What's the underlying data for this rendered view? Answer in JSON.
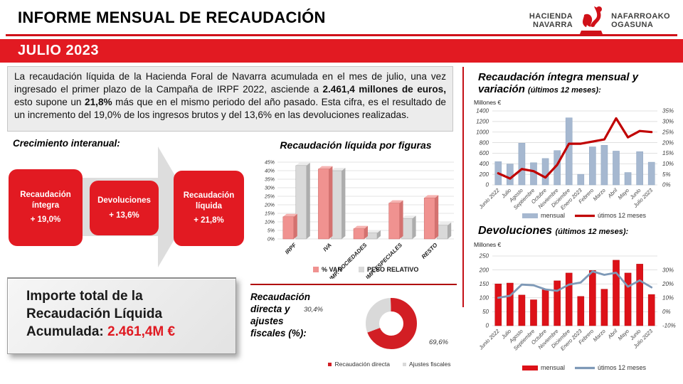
{
  "header": {
    "title": "INFORME MENSUAL DE RECAUDACIÓN",
    "banner": "JULIO 2023",
    "logo": {
      "left_line1": "HACIENDA",
      "left_line2": "NAVARRA",
      "right_line1": "NAFARROAKO",
      "right_line2": "OGASUNA"
    }
  },
  "colors": {
    "accent_red": "#E21A22",
    "rule_red": "#C41017",
    "chart_line_red": "#C00000",
    "devol_bar_red": "#DD1118",
    "salmon": "#F09290",
    "light_gray": "#D9D9D9",
    "bar_blue": "#A6B8D0",
    "line_blue": "#7E99B7"
  },
  "intro": {
    "segments": [
      {
        "bold": false,
        "text": "La recaudación líquida de la Hacienda Foral de Navarra acumulada en el mes de julio, una vez ingresado el primer plazo de la Campaña de IRPF 2022, asciende a "
      },
      {
        "bold": true,
        "text": "2.461,4 millones de euros,"
      },
      {
        "bold": false,
        "text": " esto supone un "
      },
      {
        "bold": true,
        "text": "21,8%"
      },
      {
        "bold": false,
        "text": " más que en el mismo periodo del año pasado. Esta cifra, es el resultado de un incremento del 19,0% de los ingresos brutos y del 13,6% en las devoluciones  realizadas."
      }
    ]
  },
  "growth": {
    "title": "Crecimiento interanual:",
    "boxes": [
      {
        "label": "Recaudación íntegra",
        "value": "+ 19,0%"
      },
      {
        "label": "Devoluciones",
        "value": "+ 13,6%"
      },
      {
        "label": "Recaudación líquida",
        "value": "+ 21,8%"
      }
    ]
  },
  "total_box": {
    "line1": "Importe total de la",
    "line2": "Recaudación Líquida",
    "line3_prefix": "Acumulada: ",
    "line3_value": "2.461,4M €"
  },
  "chart_data": [
    {
      "id": "figuras",
      "type": "bar",
      "title": "Recaudación líquida por figuras",
      "categories": [
        "IRPF",
        "IVA",
        "IMP. SOCIEDADES",
        "IMP. ESPECIALES",
        "RESTO"
      ],
      "series": [
        {
          "name": "% VAR",
          "color": "salmon",
          "values": [
            13,
            41,
            6,
            21,
            24
          ]
        },
        {
          "name": "PESO RELATIVO",
          "color": "gray",
          "values": [
            43,
            40,
            3.5,
            12,
            8
          ]
        }
      ],
      "ylim": [
        0,
        45
      ],
      "ytick_step": 5,
      "ytick_suffix": "%",
      "grid": true,
      "legend_position": "bottom"
    },
    {
      "id": "directa",
      "type": "pie",
      "title": "Recaudación directa y ajustes fiscales (%):",
      "slices": [
        {
          "label": "Recaudación directa",
          "value": 69.6,
          "display": "69,6%",
          "color": "red"
        },
        {
          "label": "Ajustes fiscales",
          "value": 30.4,
          "display": "30,4%",
          "color": "gray"
        }
      ],
      "legend_position": "bottom"
    },
    {
      "id": "integra",
      "type": "combo",
      "title": "Recaudación íntegra mensual y variación",
      "subtitle": "(últimos 12 meses):",
      "units": "Millones €",
      "categories": [
        "Junio 2022",
        "Julio",
        "Agosto",
        "Septiembre",
        "Octubre",
        "Noviembre",
        "Diciembre",
        "Enero 2023",
        "Febrero",
        "Marzo",
        "Abril",
        "Mayo",
        "Junio",
        "Julio 2023"
      ],
      "bars": {
        "name": "mensual",
        "values": [
          440,
          395,
          790,
          420,
          500,
          650,
          1270,
          200,
          720,
          750,
          640,
          235,
          630,
          430
        ]
      },
      "line": {
        "name": "útimos 12 meses",
        "values": [
          5.5,
          3,
          7.5,
          6.5,
          3.5,
          9.5,
          19.5,
          19.5,
          20.5,
          21.5,
          31.5,
          22.5,
          25.5,
          25
        ]
      },
      "left_axis": {
        "min": 0,
        "max": 1400,
        "step": 200
      },
      "right_axis": {
        "min": 0,
        "max": 35,
        "step": 5,
        "suffix": "%",
        "left_at_min": 0,
        "left_at_max": 1400
      },
      "grid": true,
      "legend_position": "bottom"
    },
    {
      "id": "devoluciones",
      "type": "combo",
      "title": "Devoluciones",
      "subtitle": "(últimos 12 meses):",
      "units": "Millones €",
      "categories": [
        "Junio 2022",
        "Julio",
        "Agosto",
        "Septiembre",
        "Octubre",
        "Noviembre",
        "Diciembre",
        "Enero 2023",
        "Febrero",
        "Marzo",
        "Abril",
        "Mayo",
        "Junio",
        "Julio 2023"
      ],
      "bars": {
        "name": "mensual",
        "values": [
          150,
          153,
          110,
          93,
          129,
          161,
          189,
          105,
          198,
          131,
          235,
          189,
          221,
          112
        ]
      },
      "line": {
        "name": "útimos 12 meses",
        "values": [
          10,
          11.5,
          19.5,
          19,
          16,
          15,
          19.5,
          21,
          29,
          26.5,
          28,
          18,
          22.5,
          17.5
        ]
      },
      "left_axis": {
        "min": 0,
        "max": 250,
        "step": 50
      },
      "right_axis": {
        "min": -10,
        "max": 30,
        "step": 10,
        "suffix": "%",
        "left_at_min": 0,
        "left_at_max": 200
      },
      "grid": true,
      "legend_position": "bottom"
    }
  ]
}
